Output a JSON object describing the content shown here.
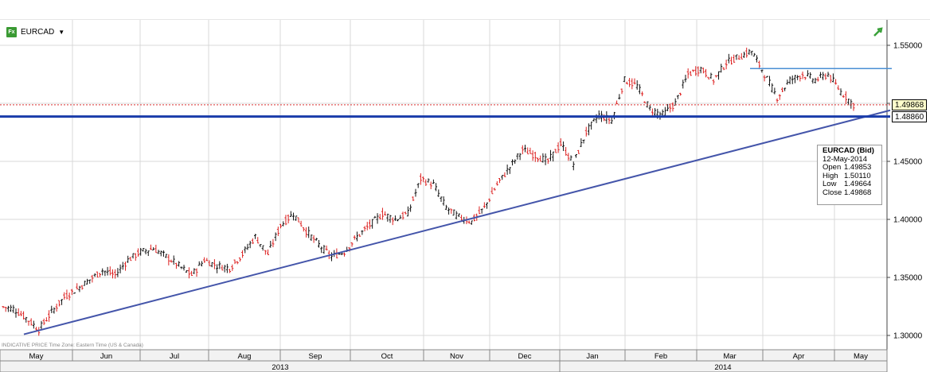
{
  "header": {
    "symbol": "EURCAD",
    "fx_icon_text": "Fx",
    "fx_icon": "fx-icon",
    "menu_icon": "caret-down-icon",
    "trend_icon": "trend-arrow-icon"
  },
  "footnote": "INDICATIVE PRICE   Time Zone: Eastern Time (US & Canada)",
  "infobox": {
    "title": "EURCAD (Bid)",
    "date": "12-May-2014",
    "open_label": "Open",
    "open": "1.49853",
    "high_label": "High",
    "high": "1.50110",
    "low_label": "Low",
    "low": "1.49664",
    "close_label": "Close",
    "close": "1.49868"
  },
  "tags": {
    "close_tag": "1.49868",
    "level_tag": "1.48860"
  },
  "colors": {
    "up": "#111111",
    "down": "#dd2222",
    "trendline": "#4455aa",
    "support": "#1a3caa",
    "resistance": "#4a8fd4",
    "close_line": "#dd3333",
    "grid": "#d8d8d8"
  },
  "chart_data": {
    "type": "candlestick",
    "x": [
      "May",
      "Jun",
      "Jul",
      "Aug",
      "Sep",
      "Oct",
      "Nov",
      "Dec",
      "Jan",
      "Feb",
      "Mar",
      "Apr",
      "May"
    ],
    "years": [
      "2013",
      "2014"
    ],
    "y_ticks": [
      "1.30000",
      "1.35000",
      "1.40000",
      "1.45000",
      "1.50000",
      "1.55000"
    ],
    "ylim": [
      1.29,
      1.56
    ],
    "weekly_closes": [
      1.323,
      1.315,
      1.305,
      1.32,
      1.333,
      1.34,
      1.348,
      1.356,
      1.352,
      1.365,
      1.372,
      1.375,
      1.368,
      1.36,
      1.352,
      1.365,
      1.36,
      1.358,
      1.37,
      1.385,
      1.37,
      1.395,
      1.405,
      1.39,
      1.378,
      1.368,
      1.372,
      1.385,
      1.395,
      1.405,
      1.4,
      1.405,
      1.435,
      1.43,
      1.41,
      1.402,
      1.398,
      1.41,
      1.43,
      1.445,
      1.46,
      1.455,
      1.45,
      1.465,
      1.448,
      1.475,
      1.49,
      1.485,
      1.52,
      1.515,
      1.495,
      1.49,
      1.5,
      1.525,
      1.53,
      1.52,
      1.535,
      1.54,
      1.545,
      1.525,
      1.505,
      1.52,
      1.525,
      1.52,
      1.525,
      1.51,
      1.4987
    ],
    "trendline": {
      "from": [
        "May",
        1.301
      ],
      "to": [
        "May",
        1.494
      ]
    },
    "resistance": 1.53,
    "support": 1.4886,
    "last_close": 1.49868,
    "infobox": {
      "series": "EURCAD (Bid)",
      "date": "12-May-2014",
      "open": 1.49853,
      "high": 1.5011,
      "low": 1.49664,
      "close": 1.49868
    }
  }
}
